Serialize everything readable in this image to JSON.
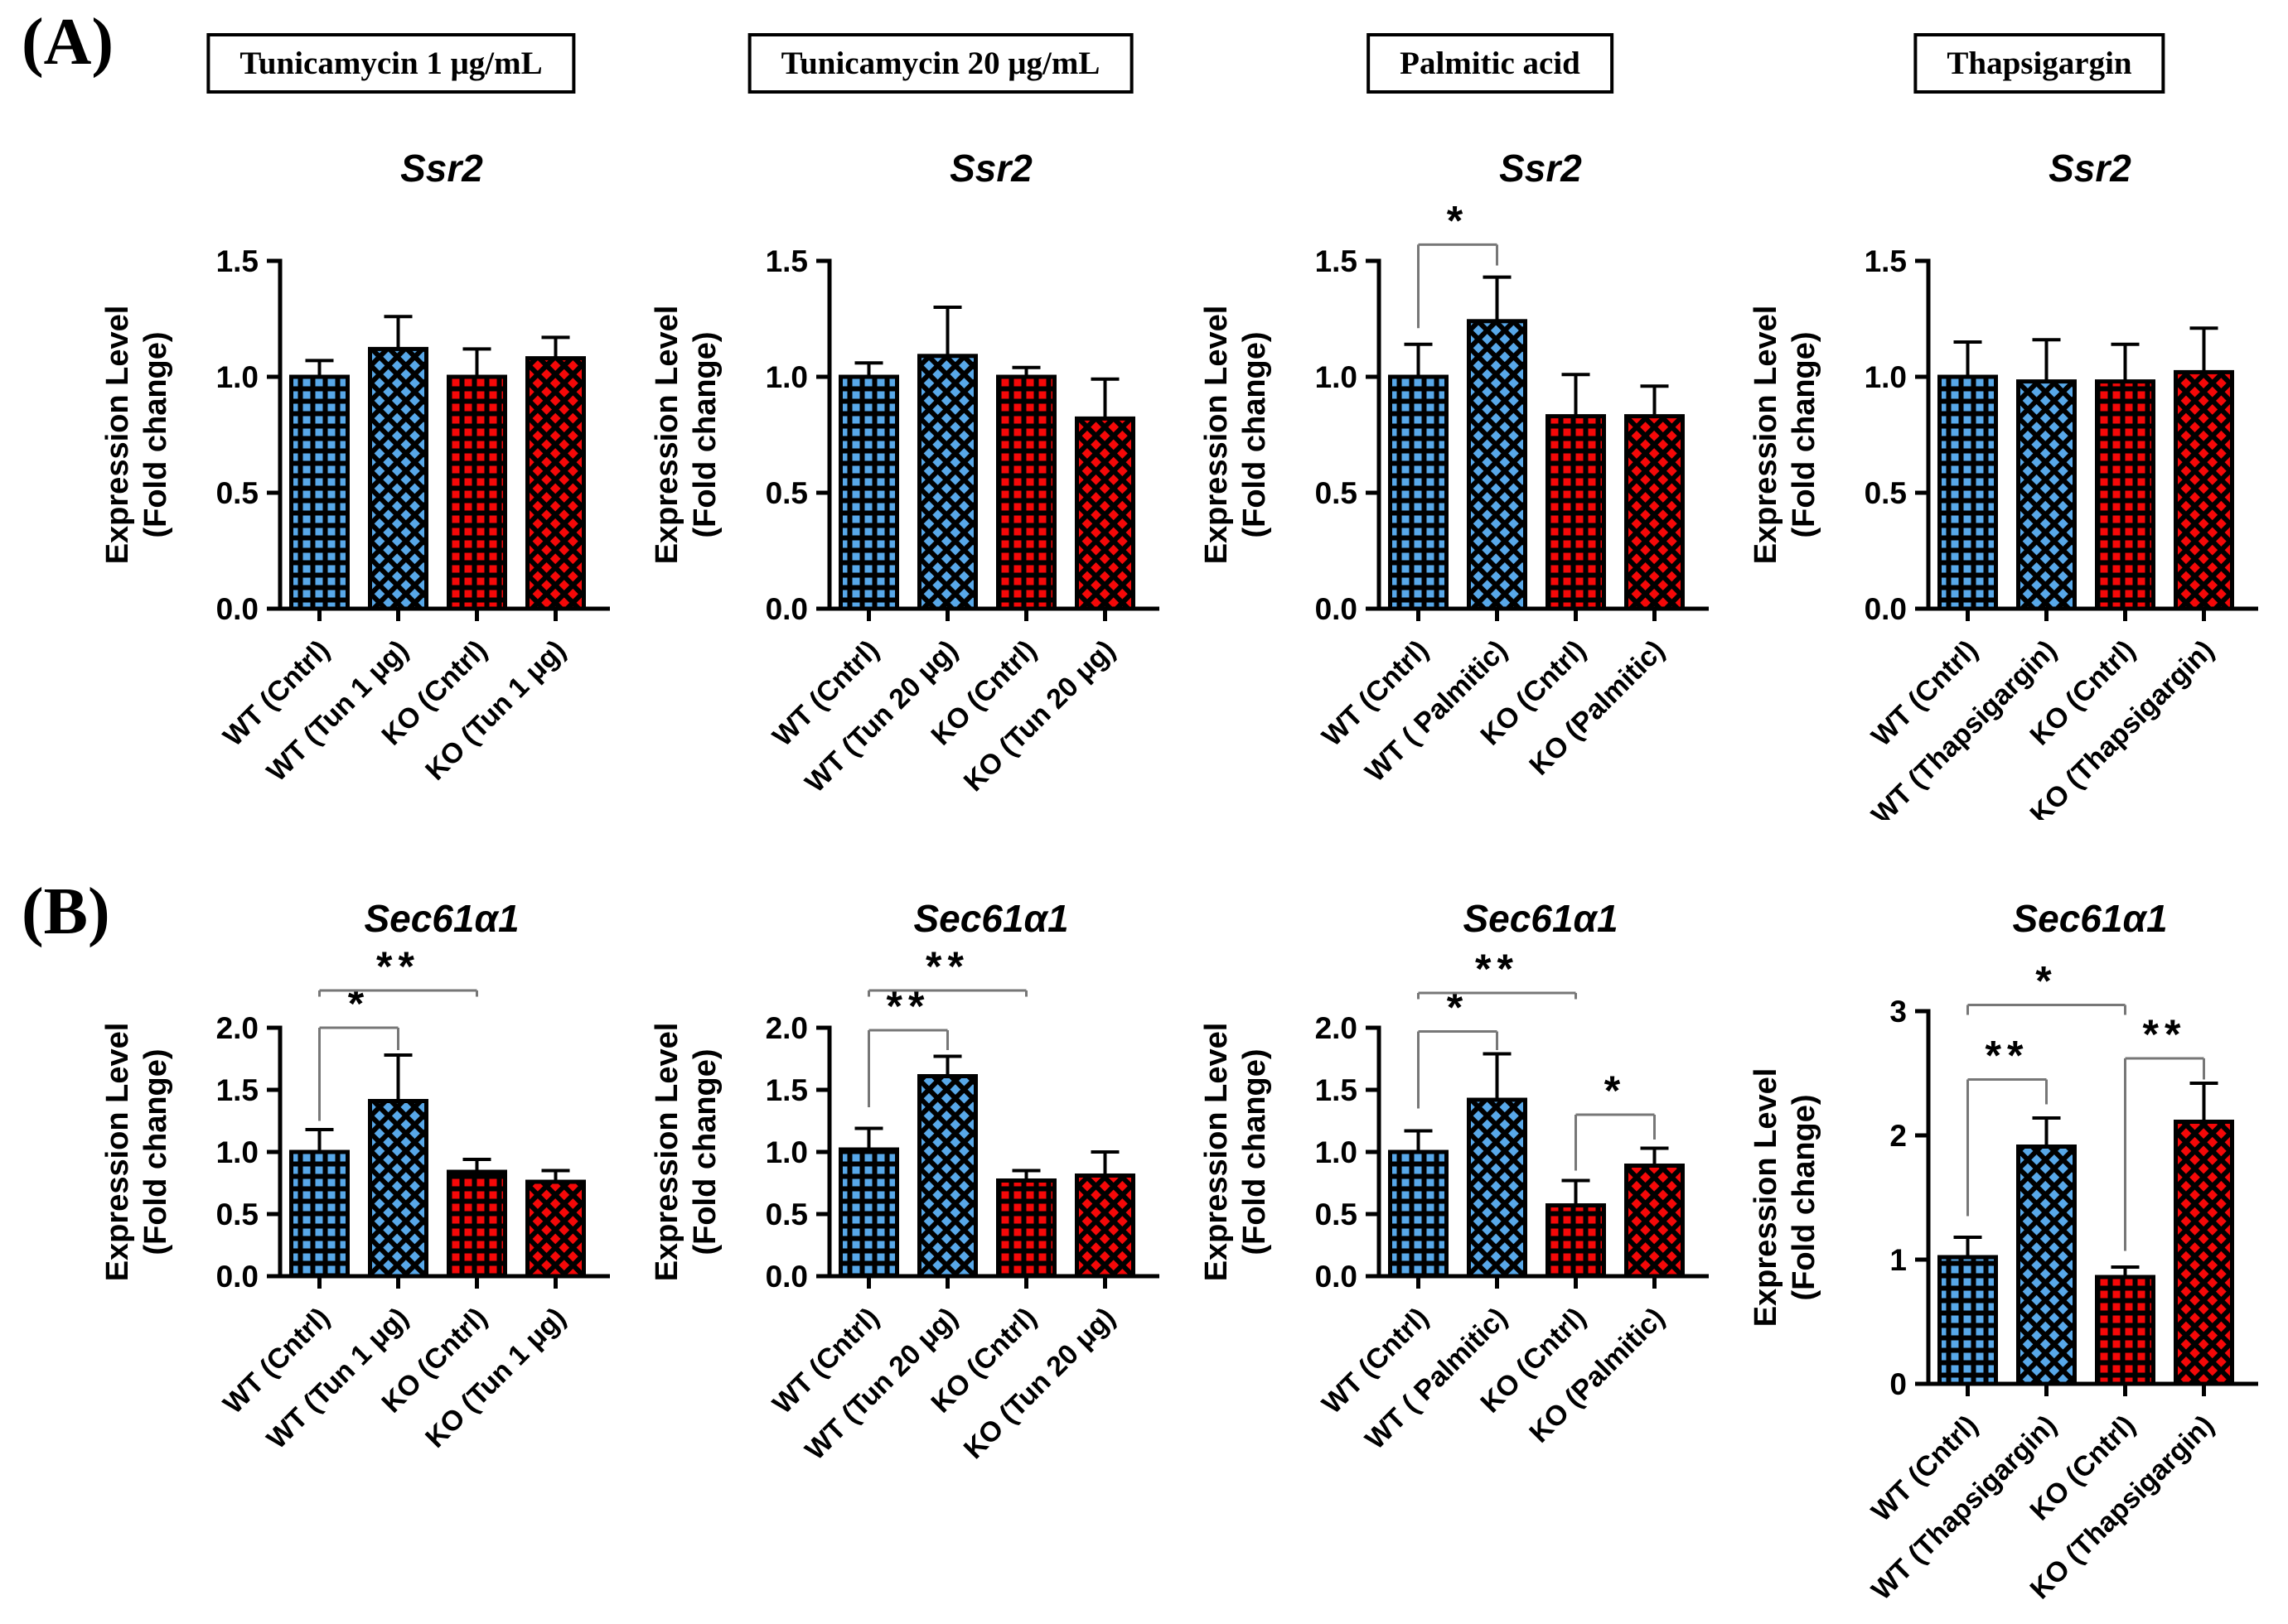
{
  "figure": {
    "sections": [
      {
        "label": "(A)"
      },
      {
        "label": "(B)"
      }
    ],
    "ylabel_line1": "Expression Level",
    "ylabel_line2": "(Fold change)",
    "bar_patterns": [
      "blue-grid",
      "blue-diagonal",
      "red-grid",
      "red-diagonal"
    ],
    "colors": {
      "blue": "#58A8E9",
      "red": "#F50808",
      "bracket": "#777777",
      "bar_outline": "#000000"
    }
  },
  "chart_data": [
    {
      "id": "tunicamycin1-ssr2",
      "type": "bar",
      "header": "Tunicamycin 1 μg/mL",
      "title": "Ssr2",
      "ylabel": "Expression Level (Fold change)",
      "ylim": [
        0,
        1.5
      ],
      "yticks": [
        "0.0",
        "0.5",
        "1.0",
        "1.5"
      ],
      "ytick_values": [
        0,
        0.5,
        1,
        1.5
      ],
      "categories": [
        "WT (Cntrl)",
        "WT (Tun 1 μg)",
        "KO (Cntrl)",
        "KO (Tun 1 μg)"
      ],
      "values": [
        1.0,
        1.12,
        1.0,
        1.08
      ],
      "errors": [
        0.07,
        0.14,
        0.12,
        0.09
      ],
      "significance": []
    },
    {
      "id": "tunicamycin20-ssr2",
      "type": "bar",
      "header": "Tunicamycin 20 μg/mL",
      "title": "Ssr2",
      "ylabel": "Expression Level (Fold change)",
      "ylim": [
        0,
        1.5
      ],
      "yticks": [
        "0.0",
        "0.5",
        "1.0",
        "1.5"
      ],
      "ytick_values": [
        0,
        0.5,
        1,
        1.5
      ],
      "categories": [
        "WT (Cntrl)",
        "WT (Tun 20 μg)",
        "KO (Cntrl)",
        "KO (Tun 20 μg)"
      ],
      "values": [
        1.0,
        1.09,
        1.0,
        0.82
      ],
      "errors": [
        0.06,
        0.21,
        0.04,
        0.17
      ],
      "significance": []
    },
    {
      "id": "palmitic-ssr2",
      "type": "bar",
      "header": "Palmitic acid",
      "title": "Ssr2",
      "ylabel": "Expression Level (Fold change)",
      "ylim": [
        0,
        1.5
      ],
      "yticks": [
        "0.0",
        "0.5",
        "1.0",
        "1.5"
      ],
      "ytick_values": [
        0,
        0.5,
        1,
        1.5
      ],
      "categories": [
        "WT (Cntrl)",
        "WT ( Palmitic)",
        "KO (Cntrl)",
        "KO (Palmitic)"
      ],
      "values": [
        1.0,
        1.24,
        0.83,
        0.83
      ],
      "errors": [
        0.14,
        0.19,
        0.18,
        0.13
      ],
      "significance": [
        {
          "from": 0,
          "to": 1,
          "y": 1.57,
          "drop_from": 0.36,
          "drop_to": 0.09,
          "label": "*"
        }
      ]
    },
    {
      "id": "thapsigargin-ssr2",
      "type": "bar",
      "header": "Thapsigargin",
      "title": "Ssr2",
      "ylabel": "Expression Level (Fold change)",
      "ylim": [
        0,
        1.5
      ],
      "yticks": [
        "0.0",
        "0.5",
        "1.0",
        "1.5"
      ],
      "ytick_values": [
        0,
        0.5,
        1,
        1.5
      ],
      "categories": [
        "WT (Cntrl)",
        "WT (Thapsigargin)",
        "KO (Cntrl)",
        "KO (Thapsigargin)"
      ],
      "values": [
        1.0,
        0.98,
        0.98,
        1.02
      ],
      "errors": [
        0.15,
        0.18,
        0.16,
        0.19
      ],
      "significance": []
    },
    {
      "id": "tunicamycin1-sec61a1",
      "type": "bar",
      "header": null,
      "title": "Sec61α1",
      "ylabel": "Expression Level (Fold change)",
      "ylim": [
        0,
        2.0
      ],
      "yticks": [
        "0.0",
        "0.5",
        "1.0",
        "1.5",
        "2.0"
      ],
      "ytick_values": [
        0,
        0.5,
        1,
        1.5,
        2
      ],
      "categories": [
        "WT (Cntrl)",
        "WT (Tun 1 μg)",
        "KO (Cntrl)",
        "KO (Tun 1 μg)"
      ],
      "values": [
        1.0,
        1.41,
        0.84,
        0.76
      ],
      "errors": [
        0.18,
        0.37,
        0.1,
        0.09
      ],
      "significance": [
        {
          "from": 0,
          "to": 1,
          "y": 2.0,
          "drop_from": 0.75,
          "drop_to": 0.18,
          "label": "*"
        },
        {
          "from": 0,
          "to": 2,
          "y": 2.3,
          "drop_from": 0.05,
          "drop_to": 0.05,
          "label": "**"
        }
      ]
    },
    {
      "id": "tunicamycin20-sec61a1",
      "type": "bar",
      "header": null,
      "title": "Sec61α1",
      "ylabel": "Expression Level (Fold change)",
      "ylim": [
        0,
        2.0
      ],
      "yticks": [
        "0.0",
        "0.5",
        "1.0",
        "1.5",
        "2.0"
      ],
      "ytick_values": [
        0,
        0.5,
        1,
        1.5,
        2
      ],
      "categories": [
        "WT (Cntrl)",
        "WT (Tun 20 μg)",
        "KO (Cntrl)",
        "KO (Tun 20 μg)"
      ],
      "values": [
        1.02,
        1.61,
        0.77,
        0.81
      ],
      "errors": [
        0.17,
        0.16,
        0.08,
        0.19
      ],
      "significance": [
        {
          "from": 0,
          "to": 1,
          "y": 1.98,
          "drop_from": 0.62,
          "drop_to": 0.16,
          "label": "**"
        },
        {
          "from": 0,
          "to": 2,
          "y": 2.3,
          "drop_from": 0.05,
          "drop_to": 0.05,
          "label": "**"
        }
      ]
    },
    {
      "id": "palmitic-sec61a1",
      "type": "bar",
      "header": null,
      "title": "Sec61α1",
      "ylabel": "Expression Level (Fold change)",
      "ylim": [
        0,
        2.0
      ],
      "yticks": [
        "0.0",
        "0.5",
        "1.0",
        "1.5",
        "2.0"
      ],
      "ytick_values": [
        0,
        0.5,
        1,
        1.5,
        2
      ],
      "categories": [
        "WT (Cntrl)",
        "WT ( Palmitic)",
        "KO (Cntrl)",
        "KO (Palmitic)"
      ],
      "values": [
        1.0,
        1.42,
        0.57,
        0.89
      ],
      "errors": [
        0.17,
        0.37,
        0.2,
        0.14
      ],
      "significance": [
        {
          "from": 0,
          "to": 1,
          "y": 1.97,
          "drop_from": 0.62,
          "drop_to": 0.15,
          "label": "*"
        },
        {
          "from": 0,
          "to": 2,
          "y": 2.28,
          "drop_from": 0.05,
          "drop_to": 0.05,
          "label": "**"
        },
        {
          "from": 2,
          "to": 3,
          "y": 1.3,
          "drop_from": 0.45,
          "drop_to": 0.2,
          "label": "*"
        }
      ]
    },
    {
      "id": "thapsigargin-sec61a1",
      "type": "bar",
      "header": null,
      "title": "Sec61α1",
      "ylabel": "Expression Level (Fold change)",
      "ylim": [
        0,
        3
      ],
      "yticks": [
        "0",
        "1",
        "2",
        "3"
      ],
      "ytick_values": [
        0,
        1,
        2,
        3
      ],
      "categories": [
        "WT (Cntrl)",
        "WT (Thapsigargin)",
        "KO (Cntrl)",
        "KO (Thapsigargin)"
      ],
      "values": [
        1.02,
        1.91,
        0.86,
        2.11
      ],
      "errors": [
        0.16,
        0.23,
        0.08,
        0.31
      ],
      "significance": [
        {
          "from": 0,
          "to": 1,
          "y": 2.45,
          "drop_from": 1.1,
          "drop_to": 0.2,
          "label": "**"
        },
        {
          "from": 0,
          "to": 2,
          "y": 3.05,
          "drop_from": 0.08,
          "drop_to": 0.08,
          "label": "*"
        },
        {
          "from": 2,
          "to": 3,
          "y": 2.62,
          "drop_from": 1.55,
          "drop_to": 0.17,
          "label": "**"
        }
      ]
    }
  ]
}
